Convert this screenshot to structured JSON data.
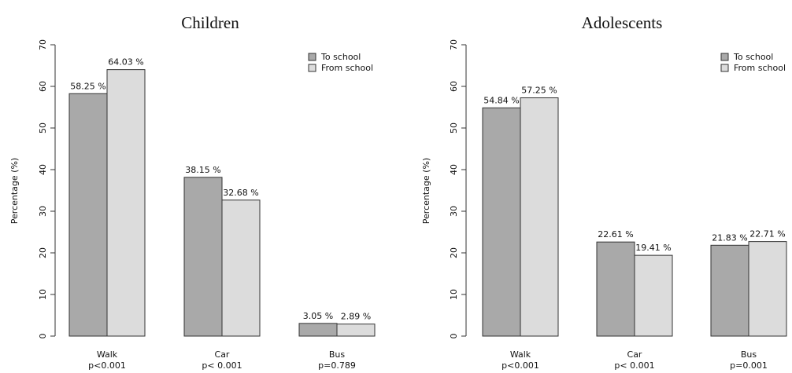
{
  "chart_data": [
    {
      "type": "bar",
      "title": "Children",
      "xlabel": "",
      "ylabel": "Percentage (%)",
      "ylim": [
        0,
        70
      ],
      "yticks": [
        "0",
        "10",
        "20",
        "30",
        "40",
        "50",
        "60",
        "70"
      ],
      "categories": [
        "Walk",
        "Car",
        "Bus"
      ],
      "pvalues": [
        "p<0.001",
        "p< 0.001",
        "p=0.789"
      ],
      "series": [
        {
          "name": "To school",
          "color": "#a9a9a9",
          "values": [
            58.25,
            38.15,
            3.05
          ],
          "labels": [
            "58.25 %",
            "38.15 %",
            "3.05 %"
          ]
        },
        {
          "name": "From school",
          "color": "#dcdcdc",
          "values": [
            64.03,
            32.68,
            2.89
          ],
          "labels": [
            "64.03 %",
            "32.68 %",
            "2.89 %"
          ]
        }
      ],
      "legend_position": "top-right",
      "grid": false
    },
    {
      "type": "bar",
      "title": "Adolescents",
      "xlabel": "",
      "ylabel": "Percentage (%)",
      "ylim": [
        0,
        70
      ],
      "yticks": [
        "0",
        "10",
        "20",
        "30",
        "40",
        "50",
        "60",
        "70"
      ],
      "categories": [
        "Walk",
        "Car",
        "Bus"
      ],
      "pvalues": [
        "p<0.001",
        "p< 0.001",
        "p=0.001"
      ],
      "series": [
        {
          "name": "To school",
          "color": "#a9a9a9",
          "values": [
            54.84,
            22.61,
            21.83
          ],
          "labels": [
            "54.84 %",
            "22.61 %",
            "21.83 %"
          ]
        },
        {
          "name": "From school",
          "color": "#dcdcdc",
          "values": [
            57.25,
            19.41,
            22.71
          ],
          "labels": [
            "57.25 %",
            "19.41 %",
            "22.71 %"
          ]
        }
      ],
      "legend_position": "top-right",
      "grid": false
    }
  ]
}
